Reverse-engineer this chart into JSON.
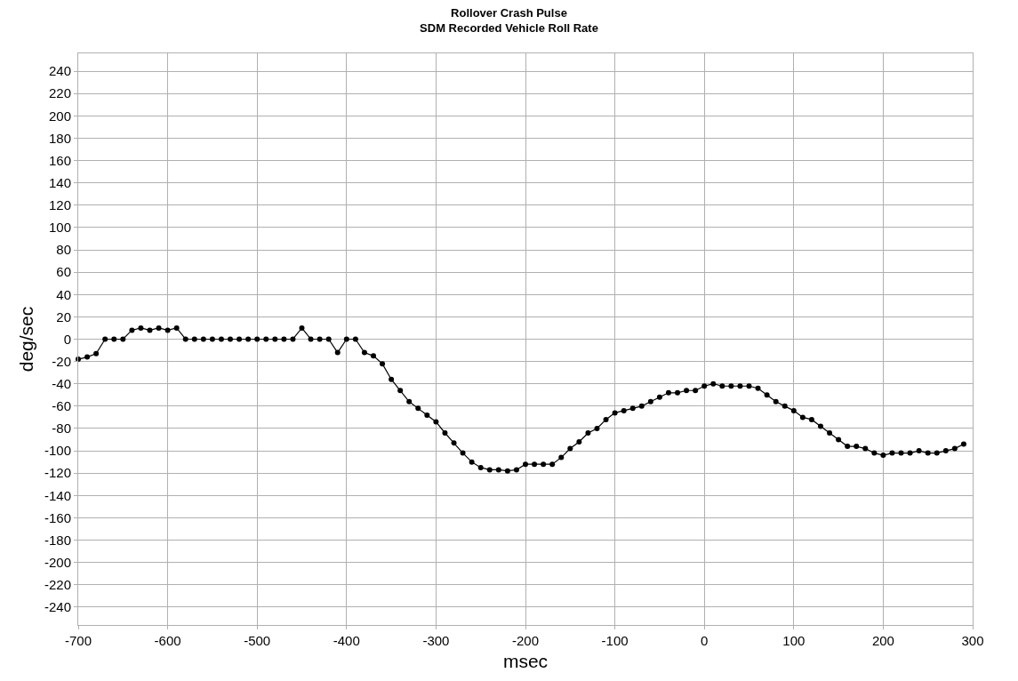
{
  "chart_data": {
    "type": "line",
    "title": "Rollover Crash Pulse",
    "subtitle": "SDM Recorded Vehicle Roll Rate",
    "xlabel": "msec",
    "ylabel": "deg/sec",
    "x": [
      -700,
      -690,
      -680,
      -670,
      -660,
      -650,
      -640,
      -630,
      -620,
      -610,
      -600,
      -590,
      -580,
      -570,
      -560,
      -550,
      -540,
      -530,
      -520,
      -510,
      -500,
      -490,
      -480,
      -470,
      -460,
      -450,
      -440,
      -430,
      -420,
      -410,
      -400,
      -390,
      -380,
      -370,
      -360,
      -350,
      -340,
      -330,
      -320,
      -310,
      -300,
      -290,
      -280,
      -270,
      -260,
      -250,
      -240,
      -230,
      -220,
      -210,
      -200,
      -190,
      -180,
      -170,
      -160,
      -150,
      -140,
      -130,
      -120,
      -110,
      -100,
      -90,
      -80,
      -70,
      -60,
      -50,
      -40,
      -30,
      -20,
      -10,
      0,
      10,
      20,
      30,
      40,
      50,
      60,
      70,
      80,
      90,
      100,
      110,
      120,
      130,
      140,
      150,
      160,
      170,
      180,
      190,
      200,
      210,
      220,
      230,
      240,
      250,
      260,
      270,
      280,
      290
    ],
    "series": [
      {
        "color": "#000000",
        "values": [
          -18,
          -16,
          -13,
          0,
          0,
          0,
          8,
          10,
          8,
          10,
          8,
          10,
          0,
          0,
          0,
          0,
          0,
          0,
          0,
          0,
          0,
          0,
          0,
          0,
          0,
          10,
          0,
          0,
          0,
          -12,
          0,
          0,
          -12,
          -15,
          -22,
          -36,
          -46,
          -56,
          -62,
          -68,
          -74,
          -84,
          -93,
          -102,
          -110,
          -115,
          -117,
          -117,
          -118,
          -117,
          -112,
          -112,
          -112,
          -112,
          -106,
          -98,
          -92,
          -84,
          -80,
          -72,
          -66,
          -64,
          -62,
          -60,
          -56,
          -52,
          -48,
          -48,
          -46,
          -46,
          -42,
          -40,
          -42,
          -42,
          -42,
          -42,
          -44,
          -50,
          -56,
          -60,
          -64,
          -70,
          -72,
          -78,
          -84,
          -90,
          -96,
          -96,
          -98,
          -102,
          -104,
          -102,
          -102,
          -102,
          -100,
          -102,
          -102,
          -100,
          -98,
          -94
        ]
      }
    ],
    "xlim": [
      -700,
      300
    ],
    "xticks": [
      -700,
      -600,
      -500,
      -400,
      -300,
      -200,
      -100,
      0,
      100,
      200,
      300
    ],
    "ylim": [
      -256,
      256
    ],
    "yticks": [
      -240,
      -220,
      -200,
      -180,
      -160,
      -140,
      -120,
      -100,
      -80,
      -60,
      -40,
      -20,
      0,
      20,
      40,
      60,
      80,
      100,
      120,
      140,
      160,
      180,
      200,
      220,
      240
    ],
    "grid": true,
    "marker": "circle",
    "line_style": "solid",
    "legend": false
  }
}
